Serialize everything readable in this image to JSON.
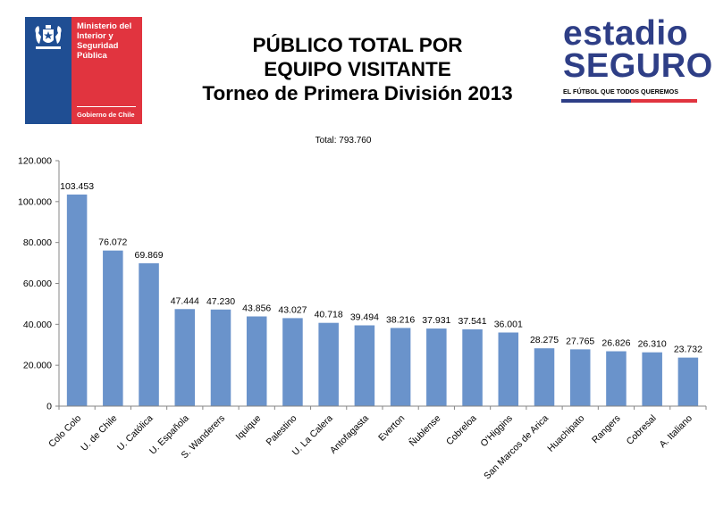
{
  "header": {
    "gov_logo": {
      "ministry": "Ministerio del Interior y Seguridad Pública",
      "footer": "Gobierno de Chile",
      "color_blue": "#1f4e93",
      "color_red": "#e1343f"
    },
    "title_line1": "PÚBLICO TOTAL POR",
    "title_line2": "EQUIPO VISITANTE",
    "title_line3": "Torneo de Primera División 2013",
    "estadio_logo": {
      "line1": "estadio",
      "line2": "SEGURO",
      "tagline": "EL FÚTBOL QUE TODOS QUEREMOS",
      "color": "#2e3e86"
    }
  },
  "chart_data": {
    "type": "bar",
    "total_label": "Total: 793.760",
    "categories": [
      "Colo Colo",
      "U. de Chile",
      "U. Católica",
      "U. Española",
      "S. Wanderers",
      "Iquique",
      "Palestino",
      "U. La Calera",
      "Antofagasta",
      "Everton",
      "Ñublense",
      "Cobreloa",
      "O'Higgins",
      "San Marcos de Arica",
      "Huachipato",
      "Rangers",
      "Cobresal",
      "A. Italiano"
    ],
    "values": [
      103453,
      76072,
      69869,
      47444,
      47230,
      43856,
      43027,
      40718,
      39494,
      38216,
      37931,
      37541,
      36001,
      28275,
      27765,
      26826,
      26310,
      23732
    ],
    "data_labels": [
      "103.453",
      "76.072",
      "69.869",
      "47.444",
      "47.230",
      "43.856",
      "43.027",
      "40.718",
      "39.494",
      "38.216",
      "37.931",
      "37.541",
      "36.001",
      "28.275",
      "27.765",
      "26.826",
      "26.310",
      "23.732"
    ],
    "yticks": [
      0,
      20000,
      40000,
      60000,
      80000,
      100000,
      120000
    ],
    "ytick_labels": [
      "0",
      "20.000",
      "40.000",
      "60.000",
      "80.000",
      "100.000",
      "120.000"
    ],
    "ylim": [
      0,
      120000
    ],
    "bar_color": "#6a93cb",
    "grid": false,
    "legend": "none"
  }
}
